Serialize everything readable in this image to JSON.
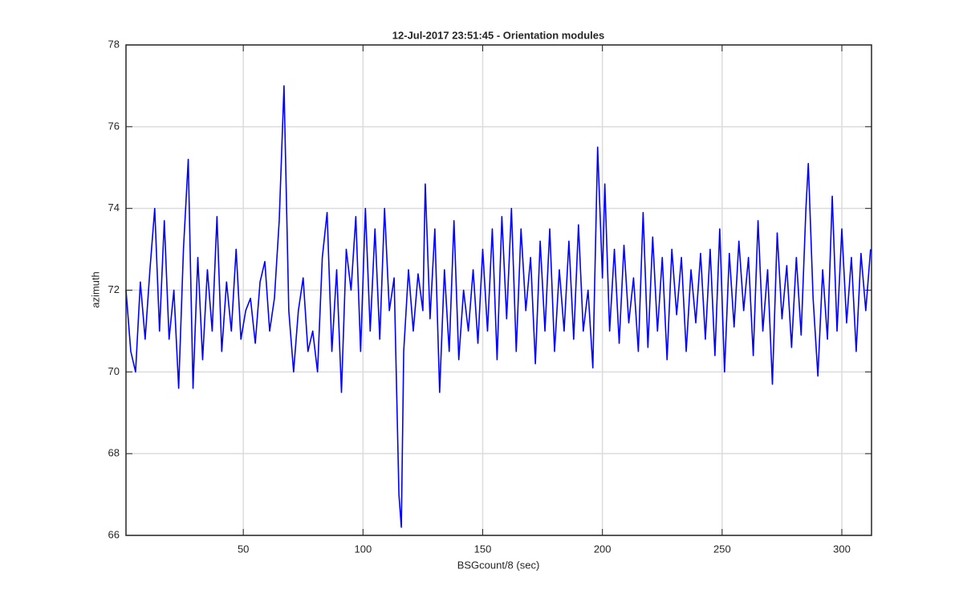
{
  "chart_data": {
    "type": "line",
    "title": "12-Jul-2017 23:51:45 - Orientation modules",
    "xlabel": "BSGcount/8 (sec)",
    "ylabel": "azimuth",
    "color": "#0000ff",
    "grid": true,
    "xlim": [
      1,
      312.4
    ],
    "ylim": [
      66,
      78
    ],
    "xticks": [
      50,
      100,
      150,
      200,
      250,
      300
    ],
    "yticks": [
      66,
      68,
      70,
      72,
      74,
      76,
      78
    ],
    "x": [
      1,
      3,
      5,
      7,
      9,
      11,
      13,
      15,
      17,
      19,
      21,
      23,
      25,
      27,
      29,
      31,
      33,
      35,
      37,
      39,
      41,
      43,
      45,
      47,
      49,
      51,
      53,
      55,
      57,
      59,
      61,
      63,
      65,
      67,
      69,
      71,
      73,
      75,
      77,
      79,
      81,
      83,
      85,
      87,
      89,
      91,
      93,
      95,
      97,
      99,
      101,
      103,
      105,
      107,
      109,
      111,
      113,
      115,
      116,
      117,
      119,
      121,
      123,
      125,
      126,
      128,
      130,
      132,
      134,
      136,
      138,
      140,
      142,
      144,
      146,
      148,
      150,
      152,
      154,
      156,
      158,
      160,
      162,
      164,
      166,
      168,
      170,
      172,
      174,
      176,
      178,
      180,
      182,
      184,
      186,
      188,
      190,
      192,
      194,
      196,
      198,
      200,
      201,
      203,
      205,
      207,
      209,
      211,
      213,
      215,
      217,
      219,
      221,
      223,
      225,
      227,
      229,
      231,
      233,
      235,
      237,
      239,
      241,
      243,
      245,
      247,
      249,
      251,
      253,
      255,
      257,
      259,
      261,
      263,
      265,
      267,
      269,
      271,
      273,
      275,
      277,
      279,
      281,
      283,
      285,
      286,
      288,
      290,
      292,
      294,
      296,
      298,
      300,
      302,
      304,
      306,
      308,
      310,
      312
    ],
    "values": [
      72,
      70.5,
      70,
      72.2,
      70.8,
      72.5,
      74,
      71,
      73.7,
      70.8,
      72,
      69.6,
      73,
      75.2,
      69.6,
      72.8,
      70.3,
      72.5,
      71,
      73.8,
      70.5,
      72.2,
      71,
      73,
      70.8,
      71.5,
      71.8,
      70.7,
      72.2,
      72.7,
      71,
      71.8,
      73.7,
      77,
      71.5,
      70,
      71.5,
      72.3,
      70.5,
      71,
      70,
      72.8,
      73.9,
      70.5,
      72.5,
      69.5,
      73,
      72,
      73.8,
      70.5,
      74,
      71,
      73.5,
      70.8,
      74,
      71.5,
      72.3,
      67,
      66.2,
      70.5,
      72.5,
      71,
      72.4,
      71.5,
      74.6,
      71.3,
      73.5,
      69.5,
      72.5,
      70.5,
      73.7,
      70.3,
      72,
      71,
      72.5,
      70.7,
      73,
      71,
      73.5,
      70.3,
      73.8,
      71.3,
      74,
      70.5,
      73.5,
      71.5,
      72.8,
      70.2,
      73.2,
      71,
      73.5,
      70.5,
      72.5,
      71,
      73.2,
      70.8,
      73.6,
      71,
      72,
      70.1,
      75.5,
      72.3,
      74.6,
      71,
      73,
      70.7,
      73.1,
      71.2,
      72.3,
      70.5,
      73.9,
      70.6,
      73.3,
      71,
      72.8,
      70.3,
      73,
      71.4,
      72.8,
      70.5,
      72.5,
      71.2,
      72.9,
      70.8,
      73,
      70.4,
      73.5,
      70,
      72.9,
      71.1,
      73.2,
      71.5,
      72.8,
      70.4,
      73.7,
      71,
      72.5,
      69.7,
      73.4,
      71.3,
      72.6,
      70.6,
      72.8,
      70.9,
      74,
      75.1,
      71.8,
      69.9,
      72.5,
      70.8,
      74.3,
      71,
      73.5,
      71.2,
      72.8,
      70.5,
      72.9,
      71.5,
      73
    ]
  }
}
